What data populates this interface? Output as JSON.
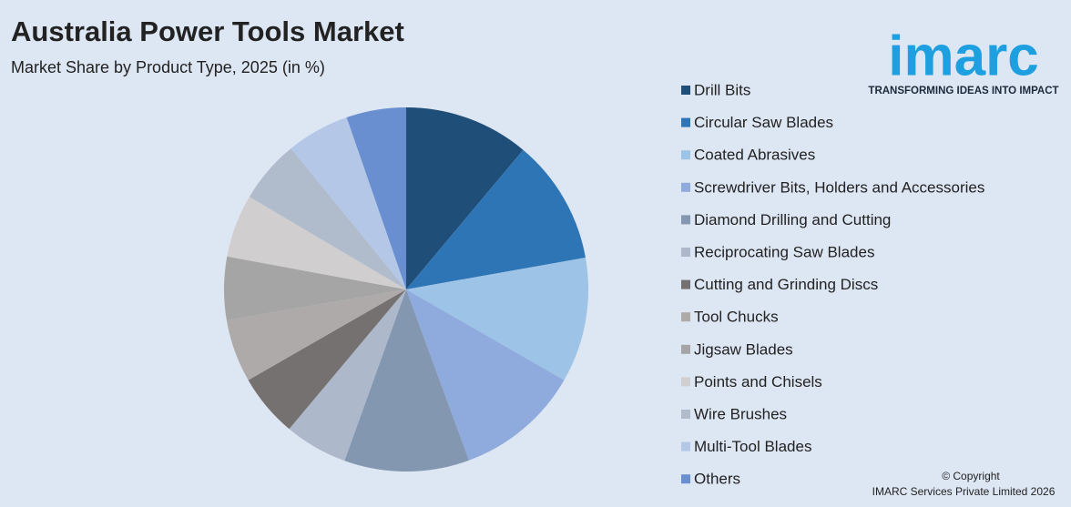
{
  "chart_data": {
    "type": "pie",
    "title": "Australia Power Tools Market",
    "subtitle": "Market Share by Product Type, 2025 (in %)",
    "categories": [
      "Drill Bits",
      "Circular Saw Blades",
      "Coated Abrasives",
      "Screwdriver Bits, Holders and Accessories",
      "Diamond Drilling and Cutting",
      "Reciprocating Saw Blades",
      "Cutting and Grinding Discs",
      "Tool Chucks",
      "Jigsaw Blades",
      "Points and Chisels",
      "Wire Brushes",
      "Multi-Tool Blades",
      "Others"
    ],
    "values": [
      11.1,
      11.1,
      11.1,
      11.1,
      11.1,
      5.6,
      5.6,
      5.6,
      5.6,
      5.6,
      5.6,
      5.6,
      5.3
    ],
    "colors": [
      "#1f4e79",
      "#2e75b6",
      "#9dc3e6",
      "#8faadc",
      "#8497b0",
      "#adb9ca",
      "#767171",
      "#aeaaaa",
      "#a5a5a5",
      "#d0cece",
      "#b0bccb",
      "#b4c7e7",
      "#6a8fd0"
    ],
    "legend": "right"
  },
  "logo": {
    "text": "imarc",
    "tagline": "TRANSFORMING IDEAS INTO IMPACT"
  },
  "copyright": [
    "© Copyright",
    "IMARC Services Private Limited 2026"
  ]
}
